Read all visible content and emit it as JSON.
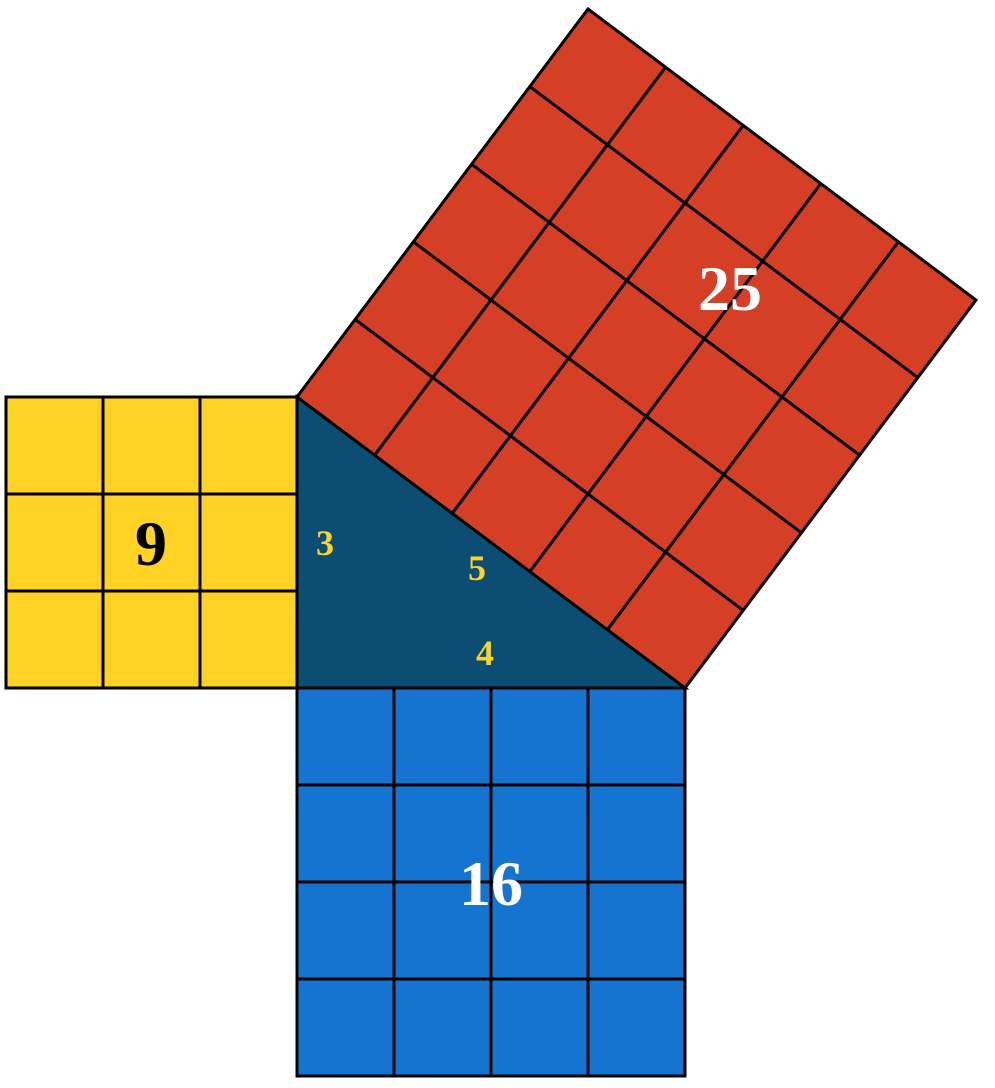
{
  "diagram": {
    "type": "infographic",
    "background_color": "#ffffff",
    "stroke_color": "#000000",
    "stroke_width": 3,
    "unit": 97,
    "squares": {
      "yellow": {
        "label": "9",
        "grid_size": 3,
        "fill_color": "#ffd224",
        "label_color": "#000000",
        "label_fontsize": 64,
        "label_weight": "bold"
      },
      "blue": {
        "label": "16",
        "grid_size": 4,
        "fill_color": "#1674d1",
        "label_color": "#ffffff",
        "label_fontsize": 64,
        "label_weight": "bold"
      },
      "red": {
        "label": "25",
        "grid_size": 5,
        "fill_color": "#d43f25",
        "label_color": "#ffffff",
        "label_fontsize": 64,
        "label_weight": "bold"
      }
    },
    "triangle": {
      "fill_color": "#0c4d74",
      "side_a": "3",
      "side_b": "4",
      "side_c": "5",
      "label_color": "#ffd224",
      "label_fontsize": 36,
      "label_weight": "bold"
    }
  }
}
